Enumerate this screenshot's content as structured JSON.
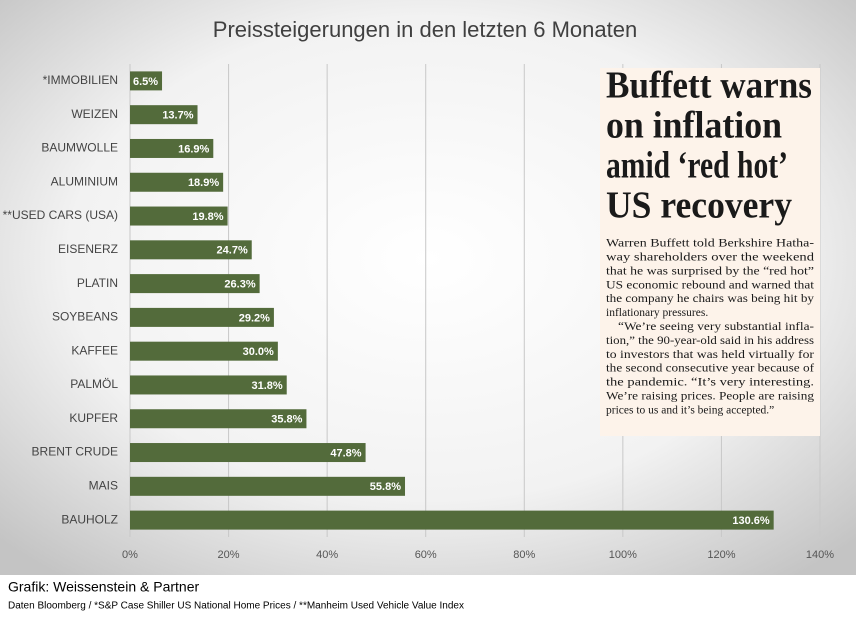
{
  "chart_data": {
    "type": "bar",
    "orientation": "horizontal",
    "title": "Preissteigerungen in den letzten 6 Monaten",
    "categories": [
      "*IMMOBILIEN",
      "WEIZEN",
      "BAUMWOLLE",
      "ALUMINIUM",
      "**USED CARS (USA)",
      "EISENERZ",
      "PLATIN",
      "SOYBEANS",
      "KAFFEE",
      "PALMÖL",
      "KUPFER",
      "BRENT CRUDE",
      "MAIS",
      "BAUHOLZ"
    ],
    "values": [
      6.5,
      13.7,
      16.9,
      18.9,
      19.8,
      24.7,
      26.3,
      29.2,
      30.0,
      31.8,
      35.8,
      47.8,
      55.8,
      130.6
    ],
    "value_labels": [
      "6.5%",
      "13.7%",
      "16.9%",
      "18.9%",
      "19.8%",
      "24.7%",
      "26.3%",
      "29.2%",
      "30.0%",
      "31.8%",
      "35.8%",
      "47.8%",
      "55.8%",
      "130.6%"
    ],
    "color": "#536b3b",
    "xlim": [
      0,
      140
    ],
    "xticks": [
      {
        "value": 0,
        "label": "0%"
      },
      {
        "value": 20,
        "label": "20%"
      },
      {
        "value": 40,
        "label": "40%"
      },
      {
        "value": 60,
        "label": "60%"
      },
      {
        "value": 80,
        "label": "80%"
      },
      {
        "value": 100,
        "label": "100%"
      },
      {
        "value": 120,
        "label": "120%"
      },
      {
        "value": 140,
        "label": "140%"
      }
    ],
    "grid": true
  },
  "clipping": {
    "headline": [
      "Buffett warns",
      "on inflation",
      "amid ‘red hot’",
      "US recovery"
    ],
    "body": [
      "Warren Buffett told Berkshire Hatha-",
      "way shareholders over the weekend",
      "that he was surprised by the “red hot”",
      "US economic rebound and warned that",
      "the company he chairs was being hit by",
      "inflationary pressures.",
      "“We’re seeing very substantial infla-",
      "tion,” the 90-year-old said in his address",
      "to investors that was held virtually for",
      "the second consecutive year because of",
      "the pandemic. “It’s very interesting.",
      "We’re raising prices. People are raising",
      "prices to us and it’s being accepted.”"
    ]
  },
  "footer": {
    "credit": "Grafik: Weissenstein & Partner",
    "source": "Daten Bloomberg / *S&P Case Shiller US National Home Prices / **Manheim Used Vehicle Value Index"
  }
}
